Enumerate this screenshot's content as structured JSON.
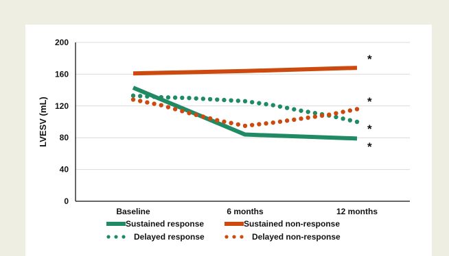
{
  "chart_data": {
    "type": "line",
    "title": "",
    "xlabel": "",
    "ylabel": "LVESV (mL)",
    "categories": [
      "Baseline",
      "6 months",
      "12 months"
    ],
    "ylim": [
      0,
      200
    ],
    "yticks": [
      0,
      40,
      80,
      120,
      160,
      200
    ],
    "grid": true,
    "legend": "bottom",
    "series": [
      {
        "name": "Sustained response",
        "style": "solid",
        "color": "#1f8a64",
        "x": [
          0,
          1,
          2
        ],
        "values": [
          143,
          84,
          79
        ]
      },
      {
        "name": "Sustained non-response",
        "style": "solid",
        "color": "#cc4a10",
        "x": [
          0,
          1,
          2
        ],
        "values": [
          161,
          164,
          168
        ]
      },
      {
        "name": "Delayed response",
        "style": "dotted",
        "color": "#1f8a64",
        "x": [
          0,
          0.25,
          0.5,
          0.75,
          1,
          1.25,
          1.5,
          1.75,
          2
        ],
        "values": [
          133,
          131,
          130,
          128,
          126,
          121,
          114,
          108,
          100
        ]
      },
      {
        "name": "Delayed non-response",
        "style": "dotted",
        "color": "#cc4a10",
        "x": [
          0,
          0.25,
          0.5,
          0.75,
          1,
          1.25,
          1.5,
          1.75,
          2
        ],
        "values": [
          128,
          121,
          111,
          102,
          95,
          99,
          104,
          109,
          116
        ]
      }
    ],
    "annotations": [
      {
        "text": "*",
        "series": "Sustained non-response"
      },
      {
        "text": "*",
        "series": "Delayed non-response"
      },
      {
        "text": "*",
        "series": "Delayed response"
      },
      {
        "text": "*",
        "series": "Sustained response"
      }
    ]
  }
}
